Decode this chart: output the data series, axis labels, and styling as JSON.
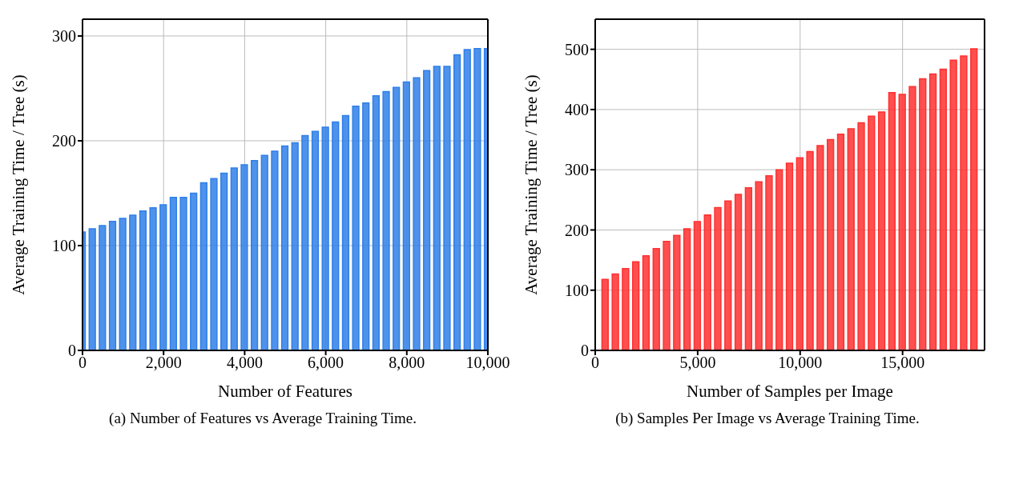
{
  "chart_data": [
    {
      "type": "bar",
      "xlabel": "Number of Features",
      "ylabel": "Average Training Time / Tree (s)",
      "x": [
        0,
        250,
        500,
        750,
        1000,
        1250,
        1500,
        1750,
        2000,
        2250,
        2500,
        2750,
        3000,
        3250,
        3500,
        3750,
        4000,
        4250,
        4500,
        4750,
        5000,
        5250,
        5500,
        5750,
        6000,
        6250,
        6500,
        6750,
        7000,
        7250,
        7500,
        7750,
        8000,
        8250,
        8500,
        8750,
        9000,
        9250,
        9500,
        9750,
        10000
      ],
      "values": [
        113,
        116,
        119,
        123,
        126,
        129,
        133,
        136,
        139,
        146,
        146,
        150,
        160,
        164,
        169,
        174,
        177,
        181,
        186,
        190,
        195,
        198,
        205,
        209,
        213,
        218,
        224,
        233,
        236,
        243,
        247,
        251,
        256,
        260,
        267,
        271,
        271,
        282,
        287,
        288,
        288
      ],
      "color": "#2f7fe8",
      "xlim": [
        0,
        10000
      ],
      "xticks": [
        0,
        {
          "value": 2000,
          "label": "2,000"
        },
        {
          "value": 4000,
          "label": "4,000"
        },
        {
          "value": 6000,
          "label": "6,000"
        },
        {
          "value": 8000,
          "label": "8,000"
        },
        {
          "value": 10000,
          "label": "10,000"
        }
      ],
      "ylim": [
        0,
        316
      ],
      "yticks": [
        0,
        100,
        200,
        300
      ],
      "grid": true,
      "annotations": [
        "(a) Number of Features vs Average Training Time."
      ]
    },
    {
      "type": "bar",
      "xlabel": "Number of Samples per Image",
      "ylabel": "Average Training Time / Tree (s)",
      "x": [
        500,
        1000,
        1500,
        2000,
        2500,
        3000,
        3500,
        4000,
        4500,
        5000,
        5500,
        6000,
        6500,
        7000,
        7500,
        8000,
        8500,
        9000,
        9500,
        10000,
        10500,
        11000,
        11500,
        12000,
        12500,
        13000,
        13500,
        14000,
        14500,
        15000,
        15500,
        16000,
        16500,
        17000,
        17500,
        18000,
        18500
      ],
      "values": [
        118,
        127,
        136,
        147,
        157,
        169,
        181,
        191,
        202,
        214,
        225,
        237,
        248,
        259,
        270,
        280,
        290,
        300,
        311,
        320,
        330,
        340,
        350,
        359,
        368,
        378,
        389,
        396,
        428,
        425,
        438,
        451,
        459,
        467,
        482,
        489,
        501
      ],
      "color": "#ff3030",
      "xlim": [
        0,
        19000
      ],
      "xticks": [
        0,
        {
          "value": 5000,
          "label": "5,000"
        },
        {
          "value": 10000,
          "label": "10,000"
        },
        {
          "value": 15000,
          "label": "15,000"
        }
      ],
      "ylim": [
        0,
        550
      ],
      "yticks": [
        0,
        100,
        200,
        300,
        400,
        500
      ],
      "grid": true,
      "annotations": [
        "(b) Samples Per Image vs Average Training Time."
      ]
    }
  ]
}
